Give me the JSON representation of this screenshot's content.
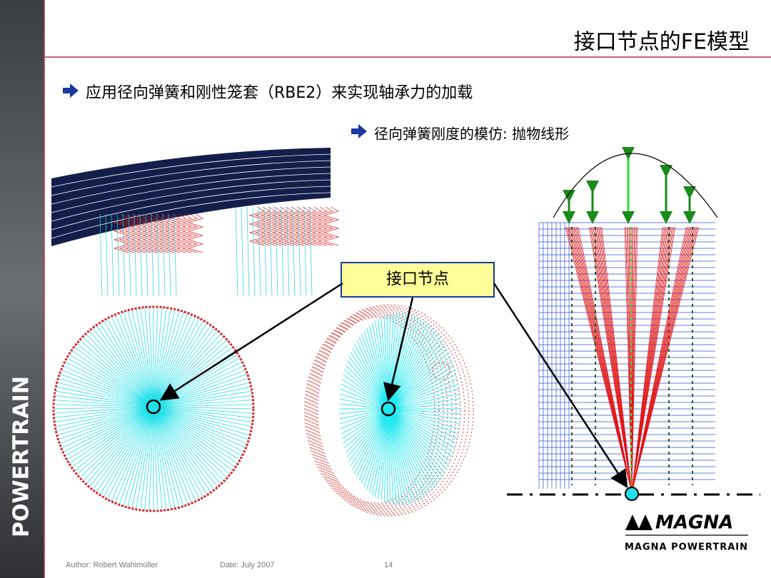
{
  "header": {
    "title": "接口节点的FE模型"
  },
  "bullet": "应用径向弹簧和刚性笼套（RBE2）来实现轴承力的加载",
  "sub_bullet": "径向弹簧刚度的模仿: 抛物线形",
  "callout": "接口节点",
  "sidebar": "POWERTRAIN",
  "logo": {
    "mark": "MAGNA",
    "tagline": "MAGNA POWERTRAIN"
  },
  "footer": {
    "author": "Author: Robert Wahlmüller",
    "date": "Date: July 2007",
    "page": "14"
  }
}
